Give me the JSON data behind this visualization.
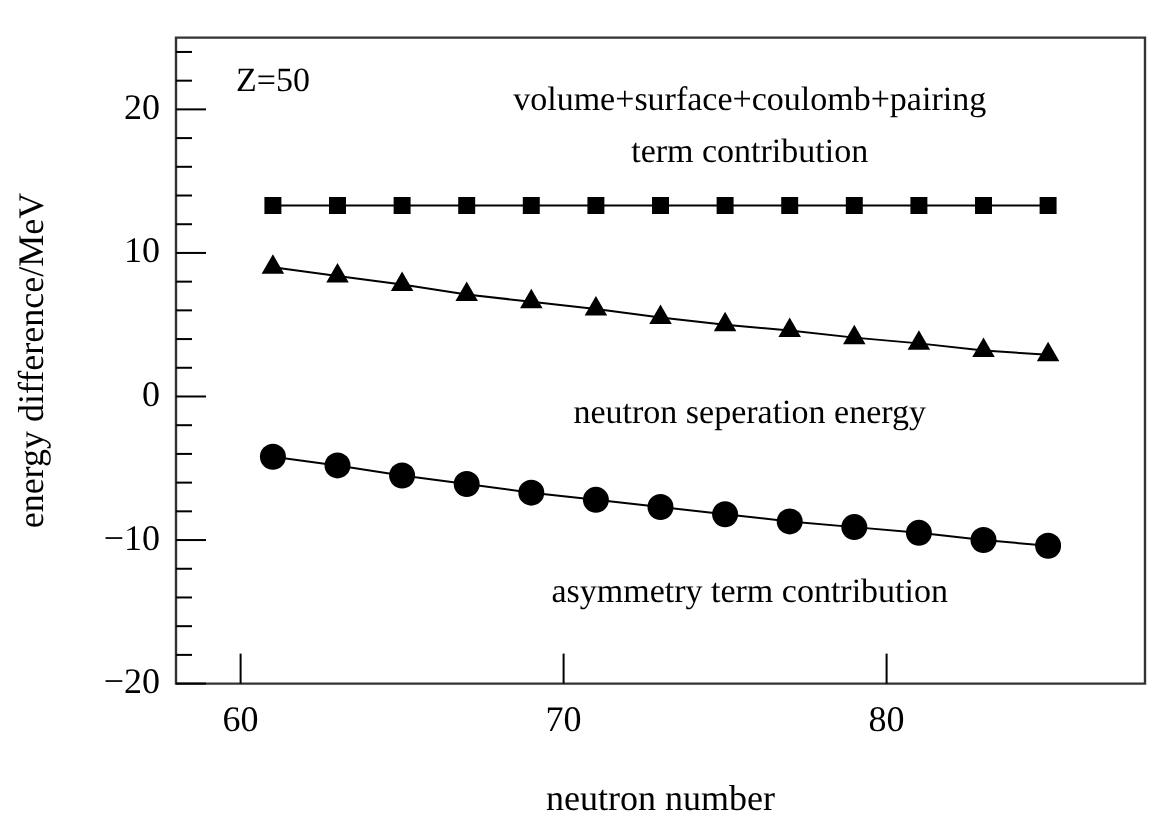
{
  "chart_data": {
    "type": "line",
    "xlabel": "neutron number",
    "ylabel": "energy difference/MeV",
    "annotations": [
      "Z=50"
    ],
    "x": [
      61,
      63,
      65,
      67,
      69,
      71,
      73,
      75,
      77,
      79,
      81,
      83,
      85
    ],
    "series": [
      {
        "name": "volume+surface+coulomb+pairing term contribution",
        "color": "#000000",
        "marker": "square",
        "values": [
          13.3,
          13.3,
          13.3,
          13.3,
          13.3,
          13.3,
          13.3,
          13.3,
          13.3,
          13.3,
          13.3,
          13.3,
          13.3
        ]
      },
      {
        "name": "neutron seperation energy",
        "color": "#000000",
        "marker": "triangle",
        "values": [
          9.0,
          8.4,
          7.8,
          7.1,
          6.6,
          6.1,
          5.5,
          5.0,
          4.6,
          4.1,
          3.7,
          3.2,
          2.9
        ]
      },
      {
        "name": "asymmetry term contribution",
        "color": "#000000",
        "marker": "circle",
        "values": [
          -4.2,
          -4.8,
          -5.5,
          -6.1,
          -6.7,
          -7.2,
          -7.7,
          -8.2,
          -8.7,
          -9.1,
          -9.5,
          -10.0,
          -10.4
        ]
      }
    ],
    "xlim": [
      58,
      88
    ],
    "xticks": [
      60,
      70,
      80
    ],
    "ylim": [
      -20,
      25
    ],
    "yticks": [
      -20,
      {
        "value": -18,
        "label": null
      },
      {
        "value": -16,
        "label": null
      },
      {
        "value": -14,
        "label": null
      },
      {
        "value": -12,
        "label": null
      },
      -10,
      {
        "value": -8,
        "label": null
      },
      {
        "value": -6,
        "label": null
      },
      {
        "value": -4,
        "label": null
      },
      {
        "value": -2,
        "label": null
      },
      0,
      {
        "value": 2,
        "label": null
      },
      {
        "value": 4,
        "label": null
      },
      {
        "value": 6,
        "label": null
      },
      {
        "value": 8,
        "label": null
      },
      10,
      {
        "value": 12,
        "label": null
      },
      {
        "value": 14,
        "label": null
      },
      {
        "value": 16,
        "label": null
      },
      {
        "value": 18,
        "label": null
      },
      20,
      {
        "value": 22,
        "label": null
      },
      {
        "value": 24,
        "label": null
      }
    ],
    "grid": false,
    "legend": false,
    "line_style": "solid"
  }
}
